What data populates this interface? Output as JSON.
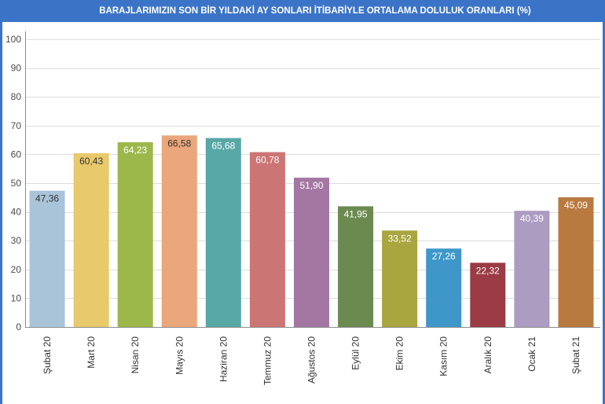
{
  "colors": {
    "title_bar": "#3b74c6",
    "title_text": "#ffffff"
  },
  "chart_data": {
    "type": "bar",
    "title": "BARAJLARIMIZIN SON BİR YILDAKİ AY SONLARI İTİBARİYLE ORTALAMA DOLULUK ORANLARI (%)",
    "xlabel": "",
    "ylabel": "",
    "categories": [
      "Şubat 20",
      "Mart 20",
      "Nisan 20",
      "Mayıs 20",
      "Haziran 20",
      "Temmuz 20",
      "Ağustos 20",
      "Eylül 20",
      "Ekim 20",
      "Kasım 20",
      "Aralık 20",
      "Ocak 21",
      "Şubat 21"
    ],
    "values": [
      47.36,
      60.43,
      64.23,
      66.58,
      65.68,
      60.78,
      51.9,
      41.95,
      33.52,
      27.26,
      22.32,
      40.39,
      45.09
    ],
    "value_labels": [
      "47,36",
      "60,43",
      "64,23",
      "66,58",
      "65,68",
      "60,78",
      "51,90",
      "41,95",
      "33,52",
      "27,26",
      "22,32",
      "40,39",
      "45,09"
    ],
    "colors": [
      "#a9c4d9",
      "#e8c96b",
      "#9cb84b",
      "#e9a77b",
      "#58a8a6",
      "#cc7575",
      "#a477a3",
      "#6b8a4f",
      "#a9a53f",
      "#3f97c9",
      "#9b3b45",
      "#ad9cc2",
      "#b87a3f"
    ],
    "label_colors": [
      "#333333",
      "#333333",
      "#ffffff",
      "#333333",
      "#ffffff",
      "#ffffff",
      "#ffffff",
      "#ffffff",
      "#ffffff",
      "#ffffff",
      "#ffffff",
      "#ffffff",
      "#ffffff"
    ],
    "ylim": [
      0,
      100
    ],
    "yticks": [
      0,
      10,
      20,
      30,
      40,
      50,
      60,
      70,
      80,
      90,
      100
    ],
    "grid": true
  }
}
